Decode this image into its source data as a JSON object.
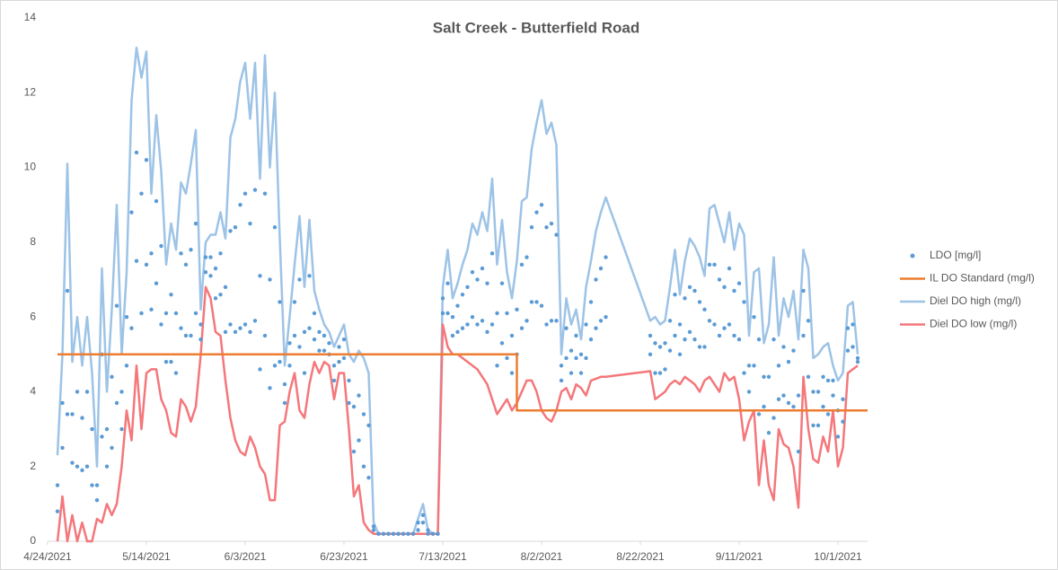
{
  "chart_data": {
    "type": "line",
    "title": "Salt Creek - Butterfield Road",
    "xlim": [
      "4/24/2021",
      "10/7/2021"
    ],
    "xticks": [
      "4/24/2021",
      "5/14/2021",
      "6/3/2021",
      "6/23/2021",
      "7/13/2021",
      "8/2/2021",
      "8/22/2021",
      "9/11/2021",
      "10/1/2021"
    ],
    "ylim": [
      0,
      14
    ],
    "yticks": [
      0,
      2,
      4,
      6,
      8,
      10,
      12,
      14
    ],
    "grid": false,
    "legend": "right",
    "x": [
      "4/26/2021",
      "4/27/2021",
      "4/28/2021",
      "4/29/2021",
      "4/30/2021",
      "5/1/2021",
      "5/2/2021",
      "5/3/2021",
      "5/4/2021",
      "5/5/2021",
      "5/6/2021",
      "5/7/2021",
      "5/8/2021",
      "5/9/2021",
      "5/10/2021",
      "5/11/2021",
      "5/12/2021",
      "5/13/2021",
      "5/14/2021",
      "5/15/2021",
      "5/16/2021",
      "5/17/2021",
      "5/18/2021",
      "5/19/2021",
      "5/20/2021",
      "5/21/2021",
      "5/22/2021",
      "5/23/2021",
      "5/24/2021",
      "5/25/2021",
      "5/26/2021",
      "5/27/2021",
      "5/28/2021",
      "5/29/2021",
      "5/30/2021",
      "5/31/2021",
      "6/1/2021",
      "6/2/2021",
      "6/3/2021",
      "6/4/2021",
      "6/5/2021",
      "6/6/2021",
      "6/7/2021",
      "6/8/2021",
      "6/9/2021",
      "6/10/2021",
      "6/11/2021",
      "6/12/2021",
      "6/13/2021",
      "6/14/2021",
      "6/15/2021",
      "6/16/2021",
      "6/17/2021",
      "6/18/2021",
      "6/19/2021",
      "6/20/2021",
      "6/21/2021",
      "6/22/2021",
      "6/23/2021",
      "6/24/2021",
      "6/25/2021",
      "6/26/2021",
      "6/27/2021",
      "6/28/2021",
      "6/29/2021",
      "6/30/2021",
      "7/1/2021",
      "7/2/2021",
      "7/3/2021",
      "7/4/2021",
      "7/5/2021",
      "7/6/2021",
      "7/7/2021",
      "7/8/2021",
      "7/9/2021",
      "7/10/2021",
      "7/11/2021",
      "7/12/2021",
      "7/13/2021",
      "7/14/2021",
      "7/15/2021",
      "7/16/2021",
      "7/17/2021",
      "7/18/2021",
      "7/19/2021",
      "7/20/2021",
      "7/21/2021",
      "7/22/2021",
      "7/23/2021",
      "7/24/2021",
      "7/25/2021",
      "7/26/2021",
      "7/27/2021",
      "7/28/2021",
      "7/29/2021",
      "7/30/2021",
      "7/31/2021",
      "8/1/2021",
      "8/2/2021",
      "8/3/2021",
      "8/4/2021",
      "8/5/2021",
      "8/6/2021",
      "8/7/2021",
      "8/8/2021",
      "8/9/2021",
      "8/10/2021",
      "8/11/2021",
      "8/12/2021",
      "8/13/2021",
      "8/14/2021",
      "8/15/2021",
      "8/24/2021",
      "8/25/2021",
      "8/26/2021",
      "8/27/2021",
      "8/28/2021",
      "8/29/2021",
      "8/30/2021",
      "8/31/2021",
      "9/1/2021",
      "9/2/2021",
      "9/3/2021",
      "9/4/2021",
      "9/5/2021",
      "9/6/2021",
      "9/7/2021",
      "9/8/2021",
      "9/9/2021",
      "9/10/2021",
      "9/11/2021",
      "9/12/2021",
      "9/13/2021",
      "9/14/2021",
      "9/15/2021",
      "9/16/2021",
      "9/17/2021",
      "9/18/2021",
      "9/19/2021",
      "9/20/2021",
      "9/21/2021",
      "9/22/2021",
      "9/23/2021",
      "9/24/2021",
      "9/25/2021",
      "9/26/2021",
      "9/27/2021",
      "9/28/2021",
      "9/29/2021",
      "9/30/2021",
      "10/1/2021",
      "10/2/2021",
      "10/3/2021",
      "10/4/2021",
      "10/5/2021"
    ],
    "series": [
      {
        "name": "LDO [mg/l]",
        "type": "scatter",
        "color": "#5b9bd5",
        "values": [
          [
            0.8,
            1.5
          ],
          [
            2.5,
            3.7
          ],
          [
            3.4,
            6.7
          ],
          [
            2.1,
            3.4
          ],
          [
            2.0,
            4.0
          ],
          [
            1.9,
            3.3
          ],
          [
            2.0,
            4.0
          ],
          [
            1.5,
            3.0
          ],
          [
            1.1,
            1.5
          ],
          [
            2.8,
            5.0
          ],
          [
            2.0,
            3.0
          ],
          [
            2.5,
            4.4
          ],
          [
            3.7,
            6.3
          ],
          [
            3.0,
            4.0
          ],
          [
            4.7,
            6.0
          ],
          [
            5.7,
            8.8
          ],
          [
            7.5,
            10.4
          ],
          [
            6.1,
            9.3
          ],
          [
            7.4,
            10.2
          ],
          [
            6.2,
            7.7
          ],
          [
            6.9,
            9.1
          ],
          [
            5.8,
            7.9
          ],
          [
            4.8,
            6.1
          ],
          [
            4.8,
            6.6
          ],
          [
            4.5,
            6.1
          ],
          [
            5.7,
            7.7
          ],
          [
            5.5,
            7.4
          ],
          [
            5.5,
            7.8
          ],
          [
            6.1,
            8.5
          ],
          [
            5.4,
            5.8
          ],
          [
            7.2,
            7.6
          ],
          [
            7.1,
            7.6
          ],
          [
            6.5,
            7.3
          ],
          [
            6.6,
            7.7
          ],
          [
            5.6,
            6.8
          ],
          [
            5.8,
            8.3
          ],
          [
            5.6,
            8.4
          ],
          [
            5.7,
            9.0
          ],
          [
            5.8,
            9.3
          ],
          [
            5.6,
            8.5
          ],
          [
            5.9,
            9.4
          ],
          [
            4.6,
            7.1
          ],
          [
            5.5,
            9.3
          ],
          [
            4.1,
            7.0
          ],
          [
            4.7,
            8.4
          ],
          [
            4.8,
            6.4
          ],
          [
            3.7,
            4.2
          ],
          [
            4.7,
            5.3
          ],
          [
            5.5,
            6.4
          ],
          [
            5.2,
            7.0
          ],
          [
            4.5,
            5.6
          ],
          [
            5.7,
            7.1
          ],
          [
            5.4,
            6.1
          ],
          [
            5.1,
            5.6
          ],
          [
            5.1,
            5.5
          ],
          [
            5.0,
            5.3
          ],
          [
            4.3,
            4.7
          ],
          [
            4.8,
            5.2
          ],
          [
            4.9,
            5.4
          ],
          [
            3.7,
            4.3
          ],
          [
            2.4,
            3.6
          ],
          [
            2.7,
            3.9
          ],
          [
            2.0,
            3.4
          ],
          [
            1.7,
            3.1
          ],
          [
            0.3,
            0.4
          ],
          [
            0.2,
            0.2
          ],
          [
            0.2,
            0.2
          ],
          [
            0.2,
            0.2
          ],
          [
            0.2,
            0.2
          ],
          [
            0.2,
            0.2
          ],
          [
            0.2,
            0.2
          ],
          [
            0.2,
            0.2
          ],
          [
            0.2,
            0.2
          ],
          [
            0.3,
            0.5
          ],
          [
            0.5,
            0.7
          ],
          [
            0.2,
            0.3
          ],
          [
            0.2,
            0.2
          ],
          [
            0.2,
            0.2
          ],
          [
            6.1,
            6.5
          ],
          [
            6.1,
            6.9
          ],
          [
            5.5,
            6.0
          ],
          [
            5.6,
            6.3
          ],
          [
            5.7,
            6.6
          ],
          [
            5.8,
            6.8
          ],
          [
            6.0,
            7.2
          ],
          [
            5.8,
            7.0
          ],
          [
            5.9,
            7.3
          ],
          [
            5.6,
            6.9
          ],
          [
            5.8,
            7.7
          ],
          [
            4.7,
            6.1
          ],
          [
            5.3,
            6.9
          ],
          [
            4.9,
            6.1
          ],
          [
            4.5,
            5.5
          ],
          [
            5.0,
            6.2
          ],
          [
            5.7,
            7.4
          ],
          [
            5.9,
            7.6
          ],
          [
            6.4,
            8.4
          ],
          [
            6.4,
            8.8
          ],
          [
            6.3,
            9.0
          ],
          [
            5.8,
            8.4
          ],
          [
            5.9,
            8.5
          ],
          [
            5.9,
            8.2
          ],
          [
            4.3,
            4.7
          ],
          [
            4.9,
            5.7
          ],
          [
            4.5,
            5.1
          ],
          [
            4.9,
            5.5
          ],
          [
            4.5,
            5.0
          ],
          [
            4.9,
            5.8
          ],
          [
            5.4,
            6.4
          ],
          [
            5.7,
            7.0
          ],
          [
            5.9,
            7.3
          ],
          [
            6.0,
            7.6
          ],
          [
            5.0,
            5.5
          ],
          [
            4.5,
            5.3
          ],
          [
            4.5,
            5.2
          ],
          [
            4.6,
            5.3
          ],
          [
            5.1,
            5.9
          ],
          [
            5.5,
            6.6
          ],
          [
            5.0,
            5.8
          ],
          [
            5.4,
            6.5
          ],
          [
            5.6,
            6.8
          ],
          [
            5.4,
            6.7
          ],
          [
            5.2,
            6.4
          ],
          [
            5.2,
            6.2
          ],
          [
            5.9,
            7.4
          ],
          [
            5.8,
            7.4
          ],
          [
            5.5,
            7.0
          ],
          [
            5.7,
            6.8
          ],
          [
            5.8,
            7.3
          ],
          [
            5.5,
            6.7
          ],
          [
            5.4,
            6.9
          ],
          [
            4.5,
            6.4
          ],
          [
            4.0,
            4.7
          ],
          [
            4.7,
            6.0
          ],
          [
            3.4,
            5.4
          ],
          [
            3.6,
            4.4
          ],
          [
            2.9,
            4.4
          ],
          [
            3.3,
            5.4
          ],
          [
            3.8,
            4.7
          ],
          [
            3.9,
            5.2
          ],
          [
            3.7,
            4.8
          ],
          [
            3.6,
            5.1
          ],
          [
            2.4,
            3.9
          ],
          [
            5.5,
            6.7
          ],
          [
            4.4,
            5.9
          ],
          [
            3.1,
            4.0
          ],
          [
            3.1,
            4.0
          ],
          [
            3.6,
            4.4
          ],
          [
            3.4,
            4.3
          ],
          [
            3.9,
            4.3
          ],
          [
            2.8,
            3.5
          ],
          [
            3.2,
            3.8
          ],
          [
            5.1,
            5.7
          ],
          [
            5.2,
            5.8
          ],
          [
            4.8,
            4.9
          ]
        ]
      },
      {
        "name": "IL DO Standard (mg/l)",
        "type": "line",
        "color": "#ed7d31",
        "x": [
          "4/26/2021",
          "7/28/2021",
          "7/28/2021",
          "10/7/2021"
        ],
        "values": [
          5,
          5,
          3.5,
          3.5
        ]
      },
      {
        "name": "Diel DO high (mg/l)",
        "type": "line",
        "color": "#9dc3e6",
        "values": [
          2.3,
          5.0,
          10.1,
          4.8,
          6.0,
          4.7,
          6.0,
          4.5,
          2.0,
          7.3,
          4.0,
          6.2,
          9.0,
          5.0,
          7.2,
          11.8,
          13.2,
          12.4,
          13.1,
          9.3,
          11.4,
          9.9,
          7.4,
          8.5,
          7.8,
          9.6,
          9.3,
          10.1,
          11.0,
          6.2,
          8.0,
          8.2,
          8.2,
          8.8,
          8.1,
          10.8,
          11.3,
          12.3,
          12.8,
          11.3,
          12.8,
          9.7,
          13.0,
          10.0,
          12.0,
          8.1,
          4.7,
          6.0,
          7.4,
          8.7,
          6.8,
          8.6,
          6.7,
          6.2,
          5.8,
          5.6,
          5.2,
          5.5,
          5.8,
          5.0,
          4.8,
          5.1,
          4.9,
          4.5,
          0.5,
          0.2,
          0.2,
          0.2,
          0.2,
          0.2,
          0.2,
          0.2,
          0.2,
          0.6,
          1.0,
          0.3,
          0.2,
          0.2,
          6.8,
          7.8,
          6.5,
          6.9,
          7.4,
          7.8,
          8.5,
          8.2,
          8.8,
          8.3,
          9.7,
          7.4,
          8.6,
          7.2,
          6.5,
          7.5,
          9.1,
          9.2,
          10.5,
          11.2,
          11.8,
          10.9,
          11.2,
          10.6,
          5.0,
          6.5,
          5.8,
          6.2,
          5.4,
          6.8,
          7.5,
          8.3,
          8.8,
          9.2,
          5.9,
          6.0,
          5.8,
          5.9,
          6.8,
          7.8,
          6.6,
          7.5,
          8.1,
          7.9,
          7.6,
          7.1,
          8.9,
          9.0,
          8.5,
          8.0,
          8.8,
          7.8,
          8.5,
          8.2,
          5.5,
          7.2,
          7.3,
          5.3,
          5.8,
          7.6,
          5.5,
          6.5,
          6.0,
          6.7,
          5.4,
          7.8,
          7.3,
          4.9,
          5.0,
          5.2,
          5.3,
          4.7,
          4.3,
          4.5,
          6.3,
          6.4,
          5.0
        ]
      },
      {
        "name": "Diel DO low (mg/l)",
        "type": "line",
        "color": "#f4777b",
        "values": [
          0,
          1.2,
          0,
          0.7,
          0,
          0.5,
          0,
          0,
          0.6,
          0.5,
          1.0,
          0.7,
          1.0,
          2.0,
          3.5,
          2.7,
          4.7,
          3.0,
          4.5,
          4.6,
          4.6,
          3.8,
          3.5,
          2.9,
          2.8,
          3.8,
          3.6,
          3.2,
          3.6,
          5.0,
          6.8,
          6.5,
          5.6,
          5.5,
          4.3,
          3.3,
          2.7,
          2.4,
          2.3,
          2.8,
          2.5,
          2.0,
          1.8,
          1.1,
          1.1,
          3.1,
          3.2,
          4.0,
          4.5,
          3.5,
          3.3,
          4.2,
          4.8,
          4.5,
          4.8,
          4.7,
          3.8,
          4.5,
          4.5,
          3.0,
          1.2,
          1.5,
          0.5,
          0.3,
          0.2,
          0.2,
          0.2,
          0.2,
          0.2,
          0.2,
          0.2,
          0.2,
          0.2,
          0.2,
          0.2,
          0.2,
          0.2,
          0.2,
          5.8,
          5.2,
          5.0,
          5.0,
          4.9,
          4.8,
          4.7,
          4.6,
          4.4,
          4.2,
          3.8,
          3.4,
          3.6,
          3.8,
          3.5,
          3.7,
          4.0,
          4.3,
          4.3,
          4.0,
          3.5,
          3.3,
          3.2,
          3.5,
          4.0,
          4.1,
          3.8,
          4.2,
          4.1,
          3.9,
          4.3,
          4.35,
          4.4,
          4.4,
          4.55,
          3.8,
          3.9,
          4.0,
          4.2,
          4.3,
          4.2,
          4.4,
          4.3,
          4.2,
          4.0,
          4.3,
          4.4,
          4.2,
          4.0,
          4.5,
          4.3,
          4.4,
          3.8,
          2.7,
          3.2,
          3.5,
          1.5,
          2.7,
          1.5,
          1.1,
          3.0,
          2.6,
          2.5,
          2.0,
          0.9,
          4.4,
          3.0,
          2.2,
          2.1,
          2.8,
          2.4,
          3.5,
          2.0,
          2.5,
          4.5,
          4.6,
          4.7
        ]
      }
    ]
  }
}
